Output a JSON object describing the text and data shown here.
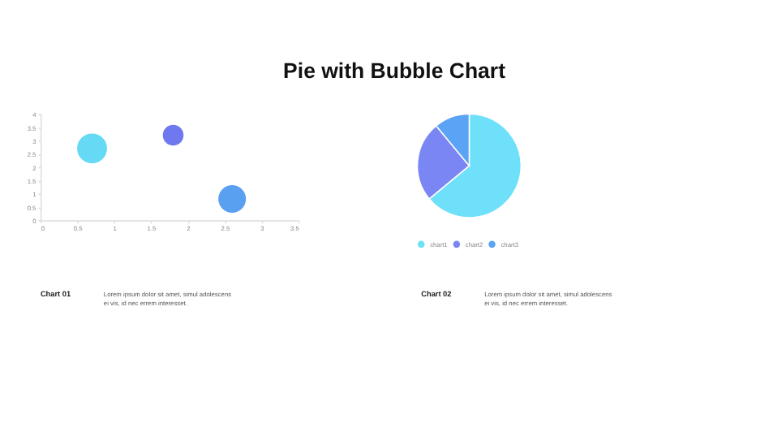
{
  "chart_data": [
    {
      "type": "bubble",
      "title": "Pie with Bubble Chart",
      "x": [
        0.7,
        1.8,
        2.6
      ],
      "values": [
        2.7,
        3.2,
        0.8
      ],
      "sizes": [
        1,
        0.48,
        0.85
      ],
      "colors": [
        "#66d9f5",
        "#6f78ee",
        "#5aa0f0"
      ],
      "xlim": [
        0,
        3.5
      ],
      "xticks": [
        0,
        0.5,
        1,
        1.5,
        2,
        2.5,
        3,
        3.5
      ],
      "ylim": [
        0,
        4
      ],
      "yticks": [
        0,
        0.5,
        1,
        1.5,
        2,
        2.5,
        3,
        3.5,
        4
      ],
      "grid": false,
      "legend": false,
      "annotations": [
        "Chart 01",
        "Lorem ipsum dolor sit amet, simul adolescens ei vis, id nec errem interesset."
      ]
    },
    {
      "type": "pie",
      "categories": [
        "chart1",
        "chart2",
        "chart3"
      ],
      "values": [
        64,
        25,
        11
      ],
      "colors": [
        "#6ee0fa",
        "#7b86f5",
        "#5ba3f5"
      ],
      "legend": "bottom",
      "annotations": [
        "Chart 02",
        "Lorem ipsum dolor sit amet, simul adolescens ei vis, id nec errem interesset."
      ]
    }
  ]
}
